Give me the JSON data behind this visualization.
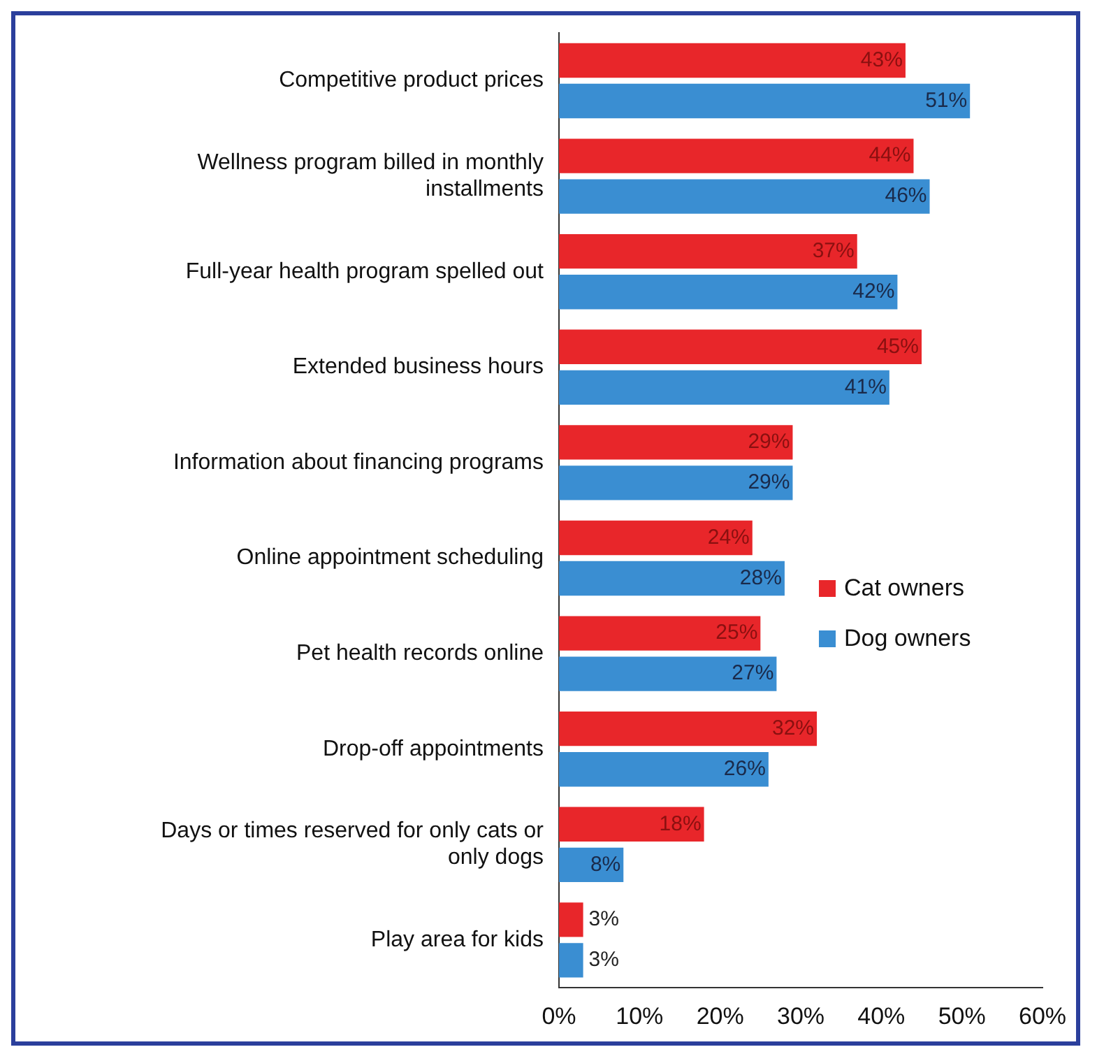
{
  "chart_data": {
    "type": "bar",
    "orientation": "horizontal",
    "categories": [
      "Competitive product prices",
      "Wellness program billed in monthly installments",
      "Full-year health program spelled out",
      "Extended business hours",
      "Information about financing programs",
      "Online appointment scheduling",
      "Pet health records online",
      "Drop-off appointments",
      "Days or times reserved for only cats or only dogs",
      "Play area for kids"
    ],
    "series": [
      {
        "name": "Cat owners",
        "color": "#e8262a",
        "values": [
          43,
          44,
          37,
          45,
          29,
          24,
          25,
          32,
          18,
          3
        ],
        "value_labels": [
          "43%",
          "44%",
          "37%",
          "45%",
          "29%",
          "24%",
          "25%",
          "32%",
          "18%",
          "3%"
        ]
      },
      {
        "name": "Dog owners",
        "color": "#3a8ed2",
        "values": [
          51,
          46,
          42,
          41,
          29,
          28,
          27,
          26,
          8,
          3
        ],
        "value_labels": [
          "51%",
          "46%",
          "42%",
          "41%",
          "29%",
          "28%",
          "27%",
          "26%",
          "8%",
          "3%"
        ]
      }
    ],
    "xlim": [
      0,
      60
    ],
    "xticks": [
      {
        "value": 0,
        "label": "0%"
      },
      {
        "value": 10,
        "label": "10%"
      },
      {
        "value": 20,
        "label": "20%"
      },
      {
        "value": 30,
        "label": "30%"
      },
      {
        "value": 40,
        "label": "40%"
      },
      {
        "value": 50,
        "label": "50%"
      },
      {
        "value": 60,
        "label": "60%"
      }
    ],
    "grid": false,
    "legend": "right"
  }
}
